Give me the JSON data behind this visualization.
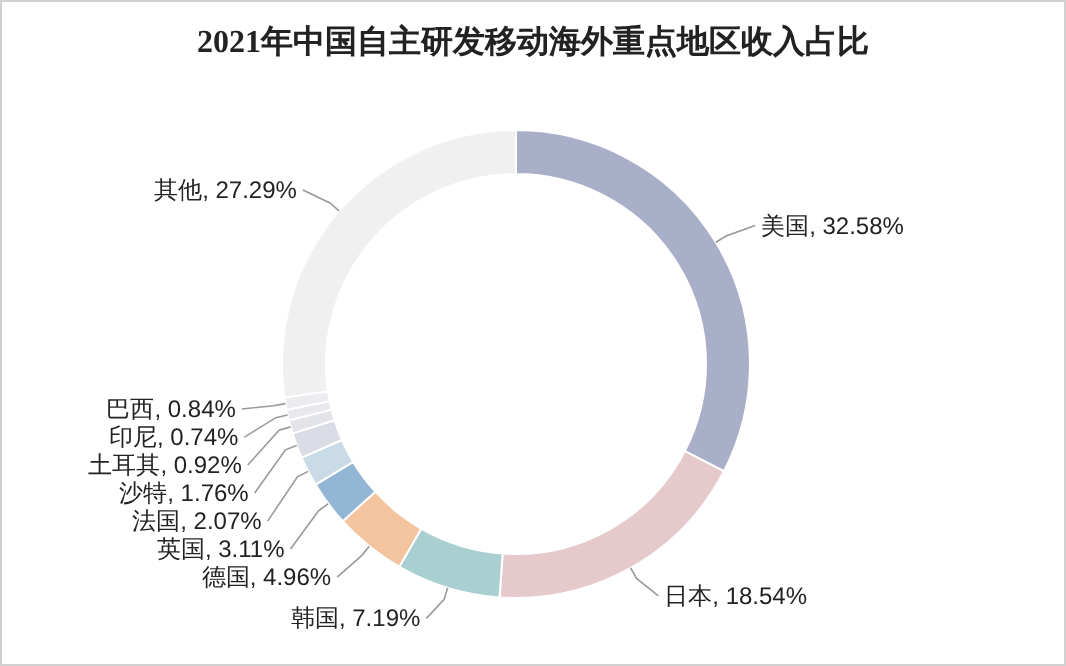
{
  "chart_data": {
    "type": "donut",
    "title": "2021年中国自主研发移动海外重点地区收入占比",
    "categories": [
      "美国",
      "日本",
      "韩国",
      "德国",
      "英国",
      "法国",
      "沙特",
      "土耳其",
      "印尼",
      "巴西",
      "其他"
    ],
    "values": [
      32.58,
      18.54,
      7.19,
      4.96,
      3.11,
      2.07,
      1.76,
      0.92,
      0.74,
      0.84,
      27.29
    ],
    "colors": [
      "#a9afc9",
      "#e6c9cb",
      "#a9cfd0",
      "#f3c49d",
      "#92b6d4",
      "#c9dbe6",
      "#d9dbe5",
      "#e3e3ea",
      "#e8e8ee",
      "#ececf0",
      "#f0f0f0"
    ],
    "value_labels": [
      ", 32.58%",
      ", 18.54%",
      ", 7.19%",
      ", 4.96%",
      ", 3.11%",
      ", 2.07%",
      ", 1.76%",
      ", 0.92%",
      ", 0.74%",
      ", 0.84%",
      ", 27.29%"
    ]
  }
}
